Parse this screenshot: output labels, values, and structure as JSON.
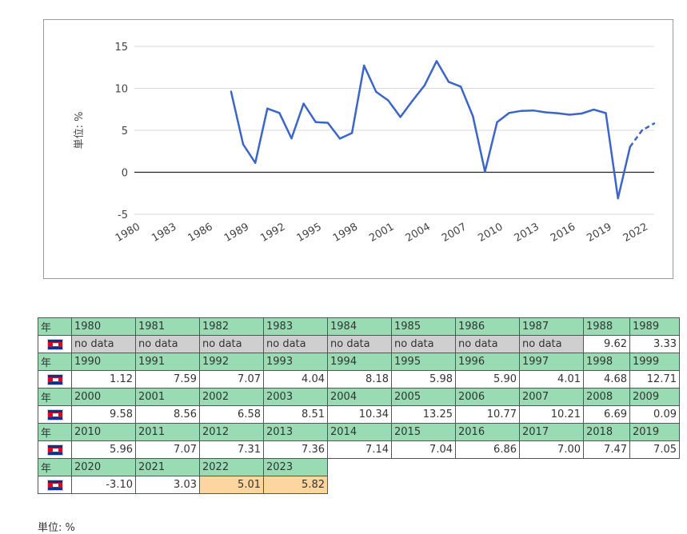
{
  "chart_data": {
    "type": "line",
    "ylabel": "単位: %",
    "ylim": [
      -7,
      17
    ],
    "yticks": [
      -5,
      0,
      5,
      10,
      15
    ],
    "xlim": [
      1980,
      2023
    ],
    "xticks": [
      1980,
      1983,
      1986,
      1989,
      1992,
      1995,
      1998,
      2001,
      2004,
      2007,
      2010,
      2013,
      2016,
      2019,
      2022
    ],
    "grid": true,
    "series": [
      {
        "color": "#3b66c7",
        "points": [
          [
            1988,
            9.62
          ],
          [
            1989,
            3.33
          ],
          [
            1990,
            1.12
          ],
          [
            1991,
            7.59
          ],
          [
            1992,
            7.07
          ],
          [
            1993,
            4.04
          ],
          [
            1994,
            8.18
          ],
          [
            1995,
            5.98
          ],
          [
            1996,
            5.9
          ],
          [
            1997,
            4.01
          ],
          [
            1998,
            4.68
          ],
          [
            1999,
            12.71
          ],
          [
            2000,
            9.58
          ],
          [
            2001,
            8.56
          ],
          [
            2002,
            6.58
          ],
          [
            2003,
            8.51
          ],
          [
            2004,
            10.34
          ],
          [
            2005,
            13.25
          ],
          [
            2006,
            10.77
          ],
          [
            2007,
            10.21
          ],
          [
            2008,
            6.69
          ],
          [
            2009,
            0.09
          ],
          [
            2010,
            5.96
          ],
          [
            2011,
            7.07
          ],
          [
            2012,
            7.31
          ],
          [
            2013,
            7.36
          ],
          [
            2014,
            7.14
          ],
          [
            2015,
            7.04
          ],
          [
            2016,
            6.86
          ],
          [
            2017,
            7.0
          ],
          [
            2018,
            7.47
          ],
          [
            2019,
            7.05
          ],
          [
            2020,
            -3.1
          ],
          [
            2021,
            3.03
          ],
          [
            2022,
            5.01
          ],
          [
            2023,
            5.82
          ]
        ],
        "estimate_from": 2021
      }
    ]
  },
  "table": {
    "year_header": "年",
    "unit_note": "単位: %",
    "rows": [
      {
        "years": [
          "1980",
          "1981",
          "1982",
          "1983",
          "1984",
          "1985",
          "1986",
          "1987",
          "1988",
          "1989"
        ],
        "values": [
          "no data",
          "no data",
          "no data",
          "no data",
          "no data",
          "no data",
          "no data",
          "no data",
          "9.62",
          "3.33"
        ],
        "kinds": [
          "nodata",
          "nodata",
          "nodata",
          "nodata",
          "nodata",
          "nodata",
          "nodata",
          "nodata",
          "val",
          "val"
        ]
      },
      {
        "years": [
          "1990",
          "1991",
          "1992",
          "1993",
          "1994",
          "1995",
          "1996",
          "1997",
          "1998",
          "1999"
        ],
        "values": [
          "1.12",
          "7.59",
          "7.07",
          "4.04",
          "8.18",
          "5.98",
          "5.90",
          "4.01",
          "4.68",
          "12.71"
        ],
        "kinds": [
          "val",
          "val",
          "val",
          "val",
          "val",
          "val",
          "val",
          "val",
          "val",
          "val"
        ]
      },
      {
        "years": [
          "2000",
          "2001",
          "2002",
          "2003",
          "2004",
          "2005",
          "2006",
          "2007",
          "2008",
          "2009"
        ],
        "values": [
          "9.58",
          "8.56",
          "6.58",
          "8.51",
          "10.34",
          "13.25",
          "10.77",
          "10.21",
          "6.69",
          "0.09"
        ],
        "kinds": [
          "val",
          "val",
          "val",
          "val",
          "val",
          "val",
          "val",
          "val",
          "val",
          "val"
        ]
      },
      {
        "years": [
          "2010",
          "2011",
          "2012",
          "2013",
          "2014",
          "2015",
          "2016",
          "2017",
          "2018",
          "2019"
        ],
        "values": [
          "5.96",
          "7.07",
          "7.31",
          "7.36",
          "7.14",
          "7.04",
          "6.86",
          "7.00",
          "7.47",
          "7.05"
        ],
        "kinds": [
          "val",
          "val",
          "val",
          "val",
          "val",
          "val",
          "val",
          "val",
          "val",
          "val"
        ]
      },
      {
        "years": [
          "2020",
          "2021",
          "2022",
          "2023"
        ],
        "values": [
          "-3.10",
          "3.03",
          "5.01",
          "5.82"
        ],
        "kinds": [
          "val",
          "val",
          "est",
          "est"
        ]
      }
    ],
    "colors": {
      "header": "#99dcb4",
      "nodata": "#cfcfcf",
      "estimate": "#fdd59e",
      "line": "#3b66c7"
    },
    "flag_icon": "cambodia-flag-icon"
  }
}
